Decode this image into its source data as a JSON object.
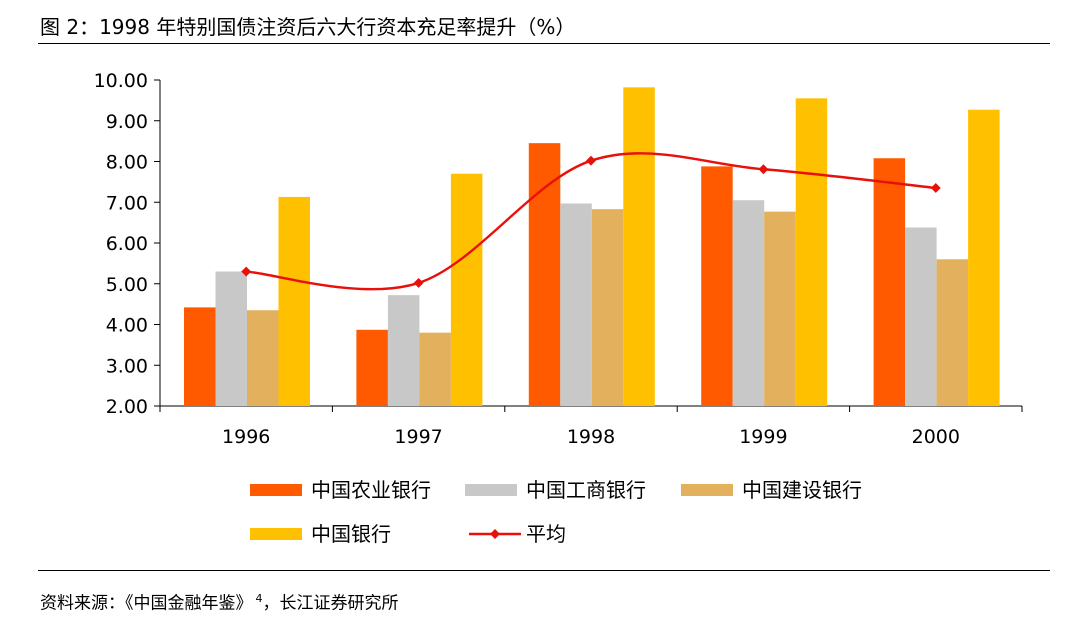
{
  "header": {
    "title": "图 2：1998 年特别国债注资后六大行资本充足率提升（%）"
  },
  "footer": {
    "source_text": "资料来源：《中国金融年鉴》",
    "source_sup": "4",
    "source_tail": "，长江证券研究所"
  },
  "chart_data": {
    "type": "bar",
    "categories": [
      "1996",
      "1997",
      "1998",
      "1999",
      "2000"
    ],
    "series": [
      {
        "name": "中国农业银行",
        "type": "bar",
        "color": "#FF5A00",
        "values": [
          4.42,
          3.87,
          8.45,
          7.88,
          8.08
        ]
      },
      {
        "name": "中国工商银行",
        "type": "bar",
        "color": "#C8C8C8",
        "values": [
          5.3,
          4.72,
          6.97,
          7.05,
          6.38
        ]
      },
      {
        "name": "中国建设银行",
        "type": "bar",
        "color": "#E3B15D",
        "values": [
          4.35,
          3.8,
          6.83,
          6.77,
          5.6
        ]
      },
      {
        "name": "中国银行",
        "type": "bar",
        "color": "#FFC000",
        "values": [
          7.13,
          7.7,
          9.82,
          9.55,
          9.27
        ]
      },
      {
        "name": "平均",
        "type": "line",
        "color": "#E8100A",
        "values": [
          5.3,
          5.02,
          8.02,
          7.81,
          7.35
        ]
      }
    ],
    "ylim": [
      2.0,
      10.0
    ],
    "yticks": [
      "2.00",
      "3.00",
      "4.00",
      "5.00",
      "6.00",
      "7.00",
      "8.00",
      "9.00",
      "10.00"
    ],
    "grid": false,
    "legend_position": "bottom"
  }
}
